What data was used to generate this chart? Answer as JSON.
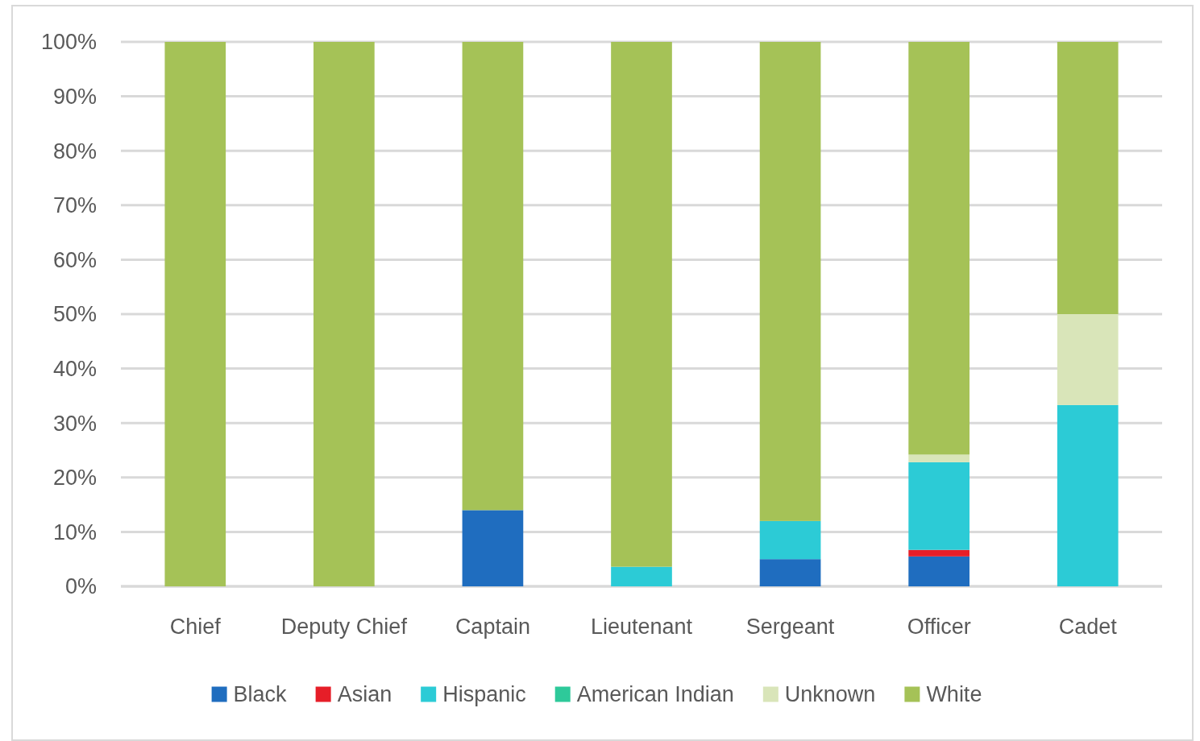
{
  "chart_data": {
    "type": "bar",
    "stacked": true,
    "categories": [
      "Chief",
      "Deputy Chief",
      "Captain",
      "Lieutenant",
      "Sergeant",
      "Officer",
      "Cadet"
    ],
    "series": [
      {
        "name": "Black",
        "color": "#1f6dbf",
        "values": [
          null,
          null,
          14,
          null,
          5,
          5.5,
          null
        ]
      },
      {
        "name": "Asian",
        "color": "#e61e28",
        "values": [
          null,
          null,
          null,
          null,
          null,
          1.2,
          null
        ]
      },
      {
        "name": "Hispanic",
        "color": "#2ccbd6",
        "values": [
          null,
          null,
          null,
          3.6,
          7,
          16.1,
          33.3
        ]
      },
      {
        "name": "American Indian",
        "color": "#2ec99a",
        "values": [
          null,
          null,
          null,
          null,
          null,
          null,
          null
        ]
      },
      {
        "name": "Unknown",
        "color": "#d9e5b9",
        "values": [
          null,
          null,
          null,
          null,
          null,
          1.4,
          16.7
        ]
      },
      {
        "name": "White",
        "color": "#a5c257",
        "values": [
          100,
          100,
          86,
          96.4,
          88,
          75.8,
          50
        ]
      }
    ],
    "ylim": [
      0,
      100
    ],
    "yticks": [
      {
        "value": 0,
        "label": "0%"
      },
      {
        "value": 10,
        "label": "10%"
      },
      {
        "value": 20,
        "label": "20%"
      },
      {
        "value": 30,
        "label": "30%"
      },
      {
        "value": 40,
        "label": "40%"
      },
      {
        "value": 50,
        "label": "50%"
      },
      {
        "value": 60,
        "label": "60%"
      },
      {
        "value": 70,
        "label": "70%"
      },
      {
        "value": 80,
        "label": "80%"
      },
      {
        "value": 90,
        "label": "90%"
      },
      {
        "value": 100,
        "label": "100%"
      }
    ],
    "grid": "y",
    "legend": "bottom"
  }
}
